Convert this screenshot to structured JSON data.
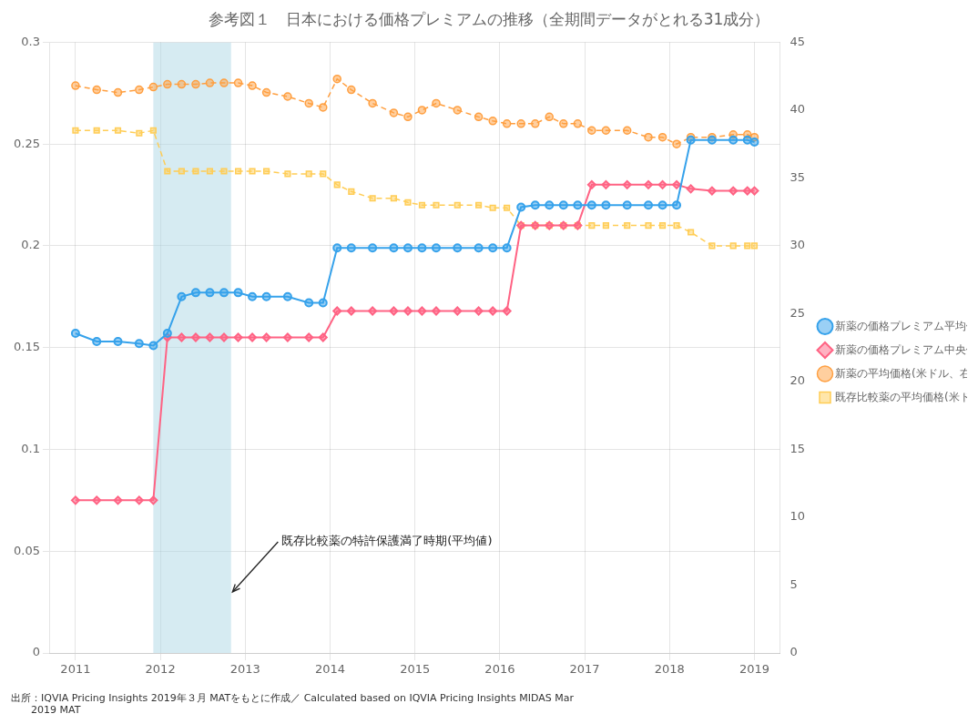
{
  "chart_data": {
    "type": "line",
    "title": "参考図１　日本における価格プレミアムの推移（全期間データがとれる31成分）",
    "source": "出所：IQVIA Pricing Insights 2019年３月 MATをもとに作成／ Calculated based on IQVIA Pricing Insights MIDAS Mar\n　　2019 MAT",
    "x": [
      2011.0,
      2011.25,
      2011.5,
      2011.75,
      2011.917,
      2012.083,
      2012.25,
      2012.417,
      2012.583,
      2012.75,
      2012.917,
      2013.083,
      2013.25,
      2013.5,
      2013.75,
      2013.917,
      2014.083,
      2014.25,
      2014.5,
      2014.75,
      2014.917,
      2015.083,
      2015.25,
      2015.5,
      2015.75,
      2015.917,
      2016.083,
      2016.25,
      2016.417,
      2016.583,
      2016.75,
      2016.917,
      2017.083,
      2017.25,
      2017.5,
      2017.75,
      2017.917,
      2018.083,
      2018.25,
      2018.5,
      2018.75,
      2018.917,
      2019.0
    ],
    "series": [
      {
        "name": "新薬の価格プレミアム平均値(対数値、左軸)",
        "marker": "circle",
        "line_style": "solid",
        "values": [
          0.157,
          0.153,
          0.153,
          0.152,
          0.151,
          0.157,
          0.175,
          0.177,
          0.177,
          0.177,
          0.177,
          0.175,
          0.175,
          0.175,
          0.172,
          0.172,
          0.199,
          0.199,
          0.199,
          0.199,
          0.199,
          0.199,
          0.199,
          0.199,
          0.199,
          0.199,
          0.199,
          0.219,
          0.22,
          0.22,
          0.22,
          0.22,
          0.22,
          0.22,
          0.22,
          0.22,
          0.22,
          0.22,
          0.252,
          0.252,
          0.252,
          0.252,
          0.251
        ]
      },
      {
        "name": "新薬の価格プレミアム中央値(対数値、左軸)",
        "marker": "diamond",
        "line_style": "solid",
        "values": [
          0.075,
          0.075,
          0.075,
          0.075,
          0.075,
          0.155,
          0.155,
          0.155,
          0.155,
          0.155,
          0.155,
          0.155,
          0.155,
          0.155,
          0.155,
          0.155,
          0.168,
          0.168,
          0.168,
          0.168,
          0.168,
          0.168,
          0.168,
          0.168,
          0.168,
          0.168,
          0.168,
          0.21,
          0.21,
          0.21,
          0.21,
          0.21,
          0.23,
          0.23,
          0.23,
          0.23,
          0.23,
          0.23,
          0.228,
          0.227,
          0.227,
          0.227,
          0.227
        ]
      },
      {
        "name": "新薬の平均価格(米ドル、右軸)",
        "axis": "y2",
        "marker": "circle",
        "line_style": "dashed",
        "values": [
          41.8,
          41.5,
          41.3,
          41.5,
          41.7,
          41.9,
          41.9,
          41.9,
          42.0,
          42.0,
          42.0,
          41.8,
          41.3,
          41.0,
          40.5,
          40.2,
          42.3,
          41.5,
          40.5,
          39.8,
          39.5,
          40.0,
          40.5,
          40.0,
          39.5,
          39.2,
          39.0,
          39.0,
          39.0,
          39.5,
          39.0,
          39.0,
          38.5,
          38.5,
          38.5,
          38.0,
          38.0,
          37.5,
          38.0,
          38.0,
          38.2,
          38.2,
          38.0
        ]
      },
      {
        "name": "既存比較薬の平均価格(米ドル、右軸)",
        "axis": "y2",
        "marker": "square",
        "line_style": "dashed",
        "values": [
          38.5,
          38.5,
          38.5,
          38.3,
          38.5,
          35.5,
          35.5,
          35.5,
          35.5,
          35.5,
          35.5,
          35.5,
          35.5,
          35.3,
          35.3,
          35.3,
          34.5,
          34.0,
          33.5,
          33.5,
          33.2,
          33.0,
          33.0,
          33.0,
          33.0,
          32.8,
          32.8,
          31.5,
          31.5,
          31.5,
          31.5,
          31.5,
          31.5,
          31.5,
          31.5,
          31.5,
          31.5,
          31.5,
          31.0,
          30.0,
          30.0,
          30.0,
          30.0
        ]
      }
    ],
    "xlim": [
      2010.7,
      2019.3
    ],
    "xticks": [
      2011,
      2012,
      2013,
      2014,
      2015,
      2016,
      2017,
      2018,
      2019
    ],
    "ylim": [
      0,
      0.3
    ],
    "yticks": [
      0,
      0.05,
      0.1,
      0.15,
      0.2,
      0.25,
      0.3
    ],
    "y2lim": [
      0,
      45
    ],
    "y2ticks": [
      0,
      5,
      10,
      15,
      20,
      25,
      30,
      35,
      40,
      45
    ],
    "grid": true,
    "legend": "right",
    "shaded_region": {
      "x": [
        2011.917,
        2012.833
      ],
      "color": "#add8e6"
    },
    "annotations": [
      {
        "text": "既存比較薬の特許保護満了時期(平均値)",
        "x": 2012.85,
        "y": 0.03
      }
    ]
  }
}
